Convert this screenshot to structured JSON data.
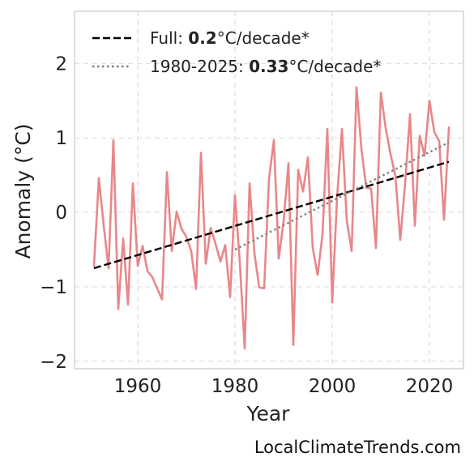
{
  "chart_data": {
    "type": "line",
    "title": "",
    "xlabel": "Year",
    "ylabel": "Anomaly (°C)",
    "xlim": [
      1947,
      2027
    ],
    "ylim": [
      -2.1,
      2.7
    ],
    "xticks": [
      1960,
      1980,
      2000,
      2020
    ],
    "yticks": [
      -2,
      -1,
      0,
      1,
      2
    ],
    "ytick_labels": [
      "−2",
      "−1",
      "0",
      "1",
      "2"
    ],
    "grid": true,
    "legend_position": "top-left",
    "series": [
      {
        "kind": "data",
        "color": "#e8878a",
        "x": [
          1951,
          1952,
          1953,
          1954,
          1955,
          1956,
          1957,
          1958,
          1959,
          1960,
          1961,
          1962,
          1963,
          1964,
          1965,
          1966,
          1967,
          1968,
          1969,
          1970,
          1971,
          1972,
          1973,
          1974,
          1975,
          1976,
          1977,
          1978,
          1979,
          1980,
          1981,
          1982,
          1983,
          1984,
          1985,
          1986,
          1987,
          1988,
          1989,
          1990,
          1991,
          1992,
          1993,
          1994,
          1995,
          1996,
          1997,
          1998,
          1999,
          2000,
          2001,
          2002,
          2003,
          2004,
          2005,
          2006,
          2007,
          2008,
          2009,
          2010,
          2011,
          2012,
          2013,
          2014,
          2015,
          2016,
          2017,
          2018,
          2019,
          2020,
          2021,
          2022,
          2023,
          2024
        ],
        "values": [
          -0.72,
          0.46,
          -0.18,
          -0.75,
          0.97,
          -1.3,
          -0.35,
          -1.24,
          0.39,
          -0.72,
          -0.45,
          -0.79,
          -0.87,
          -1.02,
          -1.17,
          0.54,
          -0.52,
          0.01,
          -0.22,
          -0.33,
          -0.52,
          -1.03,
          0.8,
          -0.69,
          -0.21,
          -0.42,
          -0.66,
          -0.44,
          -1.14,
          0.23,
          -0.68,
          -1.83,
          0.39,
          -0.55,
          -1.01,
          -1.02,
          0.45,
          0.97,
          -0.62,
          -0.12,
          0.66,
          -1.78,
          0.57,
          0.28,
          0.74,
          -0.48,
          -0.84,
          -0.3,
          1.12,
          -1.21,
          0.2,
          1.12,
          -0.11,
          -0.52,
          1.68,
          0.86,
          0.33,
          0.32,
          -0.48,
          1.61,
          1.13,
          0.78,
          0.49,
          -0.37,
          0.39,
          1.32,
          -0.18,
          1.03,
          0.76,
          1.5,
          1.08,
          0.96,
          -0.1,
          1.14
        ]
      },
      {
        "kind": "trend",
        "name_prefix": "Full: ",
        "rate": "0.2",
        "name_suffix": "°C/decade*",
        "color": "#000000",
        "style": "dashed",
        "x": [
          1951,
          2024
        ],
        "values": [
          -0.75,
          0.68
        ]
      },
      {
        "kind": "trend",
        "name_prefix": "1980-2025: ",
        "rate": "0.33",
        "name_suffix": "°C/decade*",
        "color": "#808080",
        "style": "dotted",
        "x": [
          1980,
          2024
        ],
        "values": [
          -0.5,
          0.94
        ]
      }
    ]
  },
  "credit": "LocalClimateTrends.com"
}
